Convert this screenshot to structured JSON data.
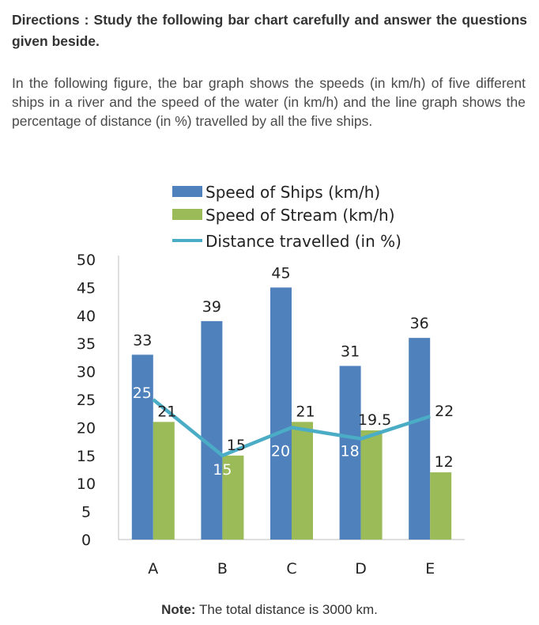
{
  "directions": "Directions : Study the following bar chart carefully and answer the questions given beside.",
  "intro": "In the following figure, the bar graph shows the speeds (in km/h) of five different ships in a river and the speed of the water (in km/h) and the line graph shows the percentage of distance (in %) travelled by all the five ships.",
  "note": {
    "label": "Note:",
    "text": "The total distance is 3000 km."
  },
  "colors": {
    "ships": "#4f81bd",
    "stream": "#9bbb59",
    "line": "#4bacc6"
  },
  "chart_data": {
    "type": "bar",
    "categories": [
      "A",
      "B",
      "C",
      "D",
      "E"
    ],
    "series": [
      {
        "name": "Speed of Ships (km/h)",
        "kind": "bar",
        "values": [
          33,
          39,
          45,
          31,
          36
        ]
      },
      {
        "name": "Speed of Stream (km/h)",
        "kind": "bar",
        "values": [
          21,
          15,
          21,
          19.5,
          12
        ]
      },
      {
        "name": "Distance travelled (in %)",
        "kind": "line",
        "values": [
          25,
          15,
          20,
          18,
          22
        ]
      }
    ],
    "data_labels": {
      "ships": [
        "33",
        "39",
        "45",
        "31",
        "36"
      ],
      "stream": [
        "21",
        "15",
        "21",
        "19.5",
        "12"
      ],
      "line": [
        "25",
        "15",
        "20",
        "18",
        "22"
      ]
    },
    "yticks": [
      "0",
      "5",
      "10",
      "15",
      "20",
      "25",
      "30",
      "35",
      "40",
      "45",
      "50"
    ],
    "ylim": [
      0,
      50
    ],
    "grid": false,
    "legend_position": "top"
  }
}
